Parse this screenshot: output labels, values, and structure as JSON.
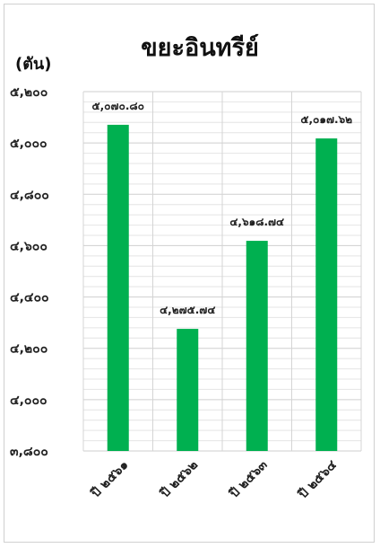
{
  "chart_data": {
    "type": "bar",
    "title": "ขยะอินทรีย์",
    "unit_label": "(ตัน)",
    "categories": [
      "ปี ๒๕๖๑",
      "ปี ๒๕๖๒",
      "ปี ๒๕๖๓",
      "ปี ๒๕๖๔"
    ],
    "values": [
      5070.8,
      4275.74,
      4618.74,
      5017.62
    ],
    "data_labels": [
      "๕,๐๗๐.๘๐",
      "๔,๒๗๕.๗๔",
      "๔,๖๑๘.๗๔",
      "๕,๐๑๗.๖๒"
    ],
    "ylim": [
      3800,
      5200
    ],
    "y_ticks": [
      3800,
      4000,
      4200,
      4400,
      4600,
      4800,
      5000,
      5200
    ],
    "y_tick_labels": [
      "๓,๘๐๐",
      "๔,๐๐๐",
      "๔,๒๐๐",
      "๔,๔๐๐",
      "๔,๖๐๐",
      "๔,๘๐๐",
      "๕,๐๐๐",
      "๕,๒๐๐"
    ],
    "minor_grid_step": 40,
    "grid": true,
    "bar_color": "#00b050",
    "gridline_color": "#d9d9d9",
    "legend": "none"
  }
}
